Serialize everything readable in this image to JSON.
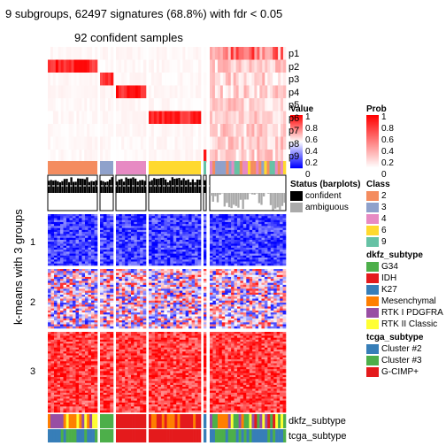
{
  "title": "9 subgroups, 62497 signatures (68.8%) with fdr < 0.05",
  "subtitle": "92 confident samples",
  "row_title": "k-means with 3 groups",
  "row_groups": [
    "1",
    "2",
    "3"
  ],
  "prob_rows": [
    "p1",
    "p2",
    "p3",
    "p4",
    "p5",
    "p6",
    "p7",
    "p8",
    "p9"
  ],
  "bottom_annotations": [
    "dkfz_subtype",
    "tcga_subtype"
  ],
  "legends": {
    "value": {
      "title": "Value",
      "ticks": [
        "1",
        "0.8",
        "0.6",
        "0.4",
        "0.2",
        "0"
      ],
      "high_color": "#ff0000",
      "mid_color": "#ffffff",
      "low_color": "#0000ff"
    },
    "prob": {
      "title": "Prob",
      "ticks": [
        "1",
        "0.8",
        "0.6",
        "0.4",
        "0.2",
        "0"
      ],
      "high_color": "#ff0000",
      "low_color": "#ffffff"
    },
    "status": {
      "title": "Status (barplots)",
      "items": [
        {
          "label": "confident",
          "color": "#000000"
        },
        {
          "label": "ambiguous",
          "color": "#aaaaaa"
        }
      ]
    },
    "class": {
      "title": "Class",
      "items": [
        {
          "label": "2",
          "color": "#f48c5f"
        },
        {
          "label": "3",
          "color": "#8fa1cb"
        },
        {
          "label": "4",
          "color": "#e78ac3"
        },
        {
          "label": "6",
          "color": "#ffd92f"
        },
        {
          "label": "9",
          "color": "#66c2a5"
        }
      ]
    },
    "dkfz": {
      "title": "dkfz_subtype",
      "items": [
        {
          "label": "G34",
          "color": "#4daf4a"
        },
        {
          "label": "IDH",
          "color": "#e41a1c"
        },
        {
          "label": "K27",
          "color": "#377eb8"
        },
        {
          "label": "Mesenchymal",
          "color": "#ff7f00"
        },
        {
          "label": "RTK I PDGFRA",
          "color": "#984ea3"
        },
        {
          "label": "RTK II Classic",
          "color": "#ffff33"
        }
      ]
    },
    "tcga": {
      "title": "tcga_subtype",
      "items": [
        {
          "label": "Cluster #2",
          "color": "#377eb8"
        },
        {
          "label": "Cluster #3",
          "color": "#4daf4a"
        },
        {
          "label": "G-CIMP+",
          "color": "#e41a1c"
        }
      ]
    }
  },
  "chart_data": {
    "type": "heatmap",
    "title": "9 subgroups, 62497 signatures (68.8%) with fdr < 0.05",
    "subtitle": "92 confident samples",
    "row_split_title": "k-means with 3 groups",
    "row_groups": [
      "1",
      "2",
      "3"
    ],
    "column_classes": [
      "2",
      "3",
      "4",
      "6",
      "9"
    ],
    "value_range": [
      0,
      1
    ],
    "prob_range": [
      0,
      1
    ],
    "bottom_annotations": [
      "dkfz_subtype",
      "tcga_subtype"
    ]
  }
}
